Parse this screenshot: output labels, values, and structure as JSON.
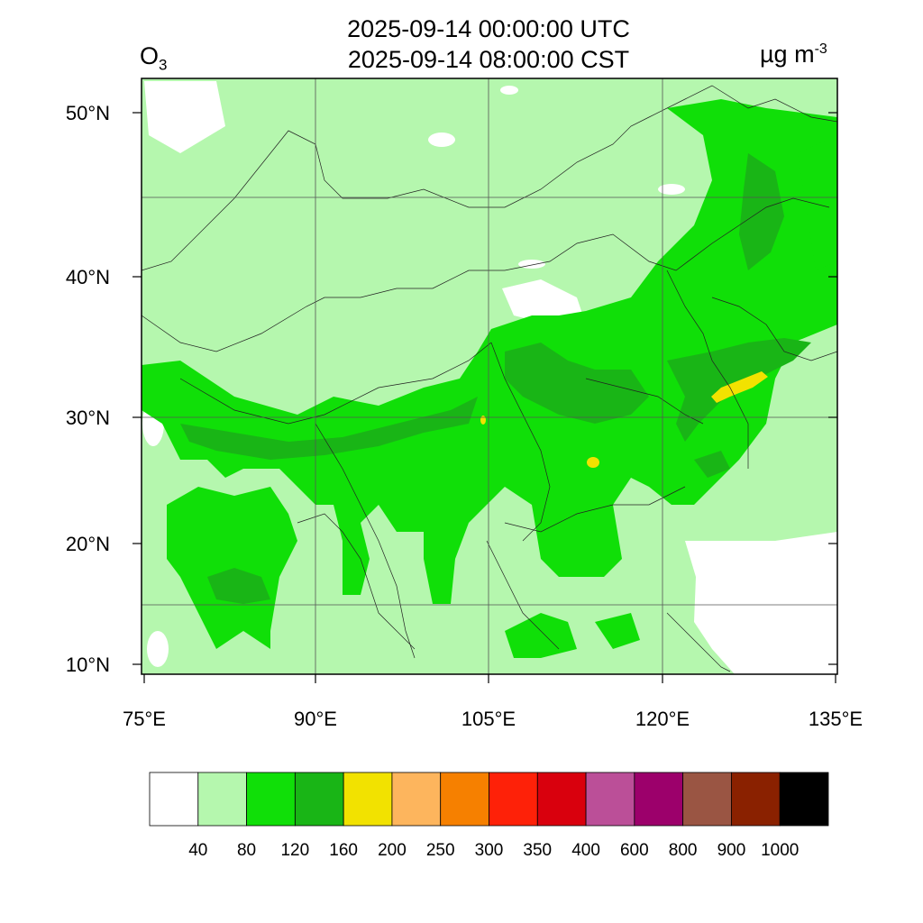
{
  "header": {
    "time_utc": "2025-09-14 00:00:00 UTC",
    "time_cst": "2025-09-14 08:00:00 CST",
    "variable": "O",
    "variable_sub": "3",
    "units": "µg m",
    "units_sup": "-3"
  },
  "map": {
    "lat_labels": [
      "50°N",
      "40°N",
      "30°N",
      "20°N",
      "10°N"
    ],
    "lon_labels": [
      "75°E",
      "90°E",
      "105°E",
      "120°E",
      "135°E"
    ]
  },
  "colorbar": {
    "colors": [
      "#ffffff",
      "#b5f7ae",
      "#10df08",
      "#19b516",
      "#f2e200",
      "#fdb55d",
      "#f68000",
      "#fe2108",
      "#d9000d",
      "#bb4f98",
      "#9c006b",
      "#9a5543",
      "#8a2100",
      "#000000"
    ],
    "labels": [
      "40",
      "80",
      "120",
      "160",
      "200",
      "250",
      "300",
      "350",
      "400",
      "600",
      "800",
      "900",
      "1000"
    ]
  }
}
